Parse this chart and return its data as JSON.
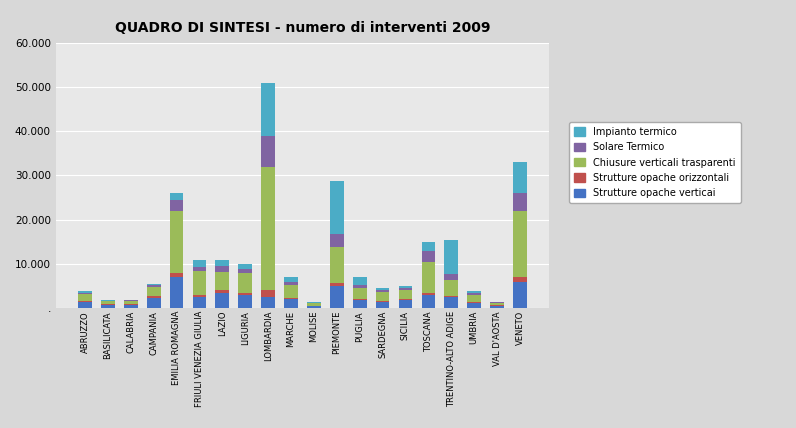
{
  "title": "QUADRO DI SINTESI - numero di interventi 2009",
  "categories": [
    "ABRUZZO",
    "BASILICATA",
    "CALABRIA",
    "CAMPANIA",
    "EMILIA ROMAGNA",
    "FRIULI VENEZIA GIULIA",
    "LAZIO",
    "LIGURIA",
    "LOMBARDIA",
    "MARCHE",
    "MOLISE",
    "PIEMONTE",
    "PUGLIA",
    "SARDEGNA",
    "SICILIA",
    "TOSCANA",
    "TRENTINO-ALTO ADIGE",
    "UMBRIA",
    "VAL D'AOSTA",
    "VENETO"
  ],
  "series": {
    "Strutture opache verticai": [
      1400,
      700,
      800,
      2200,
      7000,
      2500,
      3500,
      3000,
      2500,
      2000,
      500,
      5000,
      1800,
      1500,
      1800,
      3000,
      2500,
      1200,
      600,
      6000
    ],
    "Strutture opache orizzontali": [
      300,
      150,
      150,
      500,
      1000,
      400,
      600,
      400,
      1500,
      300,
      100,
      800,
      300,
      200,
      200,
      500,
      300,
      200,
      80,
      1000
    ],
    "Chiusure verticali trasparenti": [
      1500,
      700,
      700,
      2000,
      14000,
      5500,
      4000,
      4500,
      28000,
      3000,
      500,
      8000,
      2500,
      2000,
      2000,
      7000,
      3500,
      1500,
      500,
      15000
    ],
    "Solare Termico": [
      300,
      150,
      150,
      500,
      2500,
      1000,
      1500,
      1000,
      7000,
      700,
      100,
      3000,
      600,
      500,
      500,
      2500,
      1500,
      500,
      100,
      4000
    ],
    "Impianto termico": [
      300,
      150,
      150,
      300,
      1500,
      1500,
      1400,
      1000,
      12000,
      1000,
      200,
      12000,
      1800,
      300,
      500,
      2000,
      7500,
      500,
      200,
      7000
    ]
  },
  "colors": {
    "Strutture opache verticai": "#4472C4",
    "Strutture opache orizzontali": "#C0504D",
    "Chiusure verticali trasparenti": "#9BBB59",
    "Solare Termico": "#8064A2",
    "Impianto termico": "#4BACC6"
  },
  "ylim": [
    0,
    60000
  ],
  "yticks": [
    0,
    10000,
    20000,
    30000,
    40000,
    50000,
    60000
  ],
  "ytick_labels": [
    ".",
    "10.000",
    "20.000",
    "30.000",
    "40.000",
    "50.000",
    "60.000"
  ],
  "background_color": "#D8D8D8",
  "plot_bg_color": "#E8E8E8",
  "figsize": [
    7.96,
    4.28
  ],
  "dpi": 100
}
